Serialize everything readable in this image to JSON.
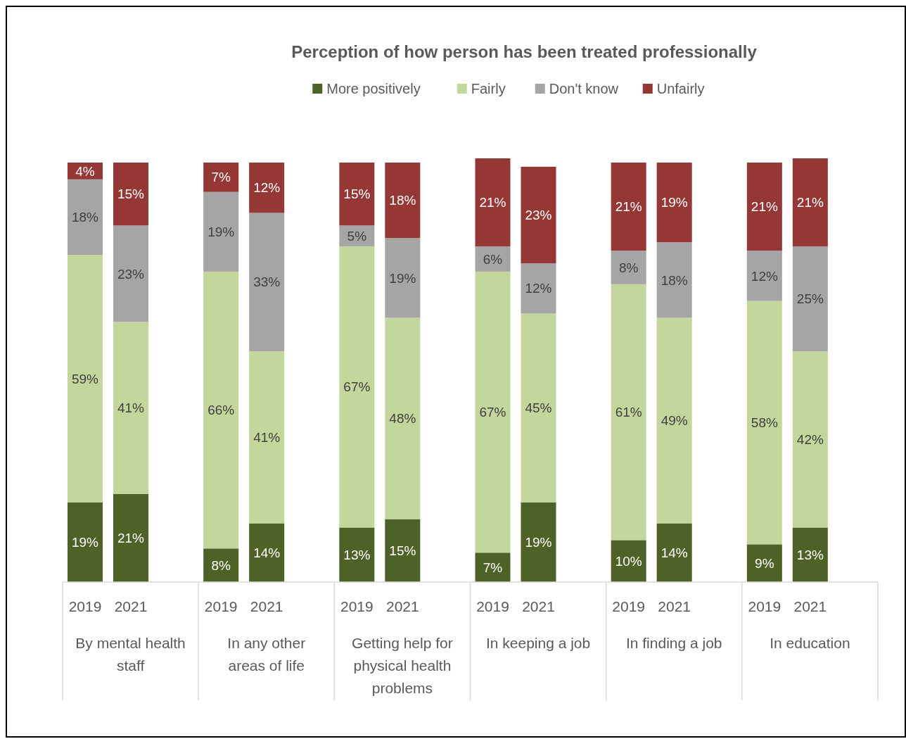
{
  "chart_data": {
    "type": "bar",
    "stacked": true,
    "title": "Perception of how person has been treated professionally",
    "legend": "top",
    "categories": [
      "2019",
      "2021",
      "2019",
      "2021",
      "2019",
      "2021",
      "2019",
      "2021",
      "2019",
      "2021",
      "2019",
      "2021"
    ],
    "annotations": [
      "By mental health staff",
      "In any other areas of life",
      "Getting help for physical health problems",
      "In keeping a job",
      "In finding a job",
      "In education"
    ],
    "series": [
      {
        "name": "More positively",
        "color": "#4e6228",
        "values": [
          19,
          21,
          8,
          14,
          13,
          15,
          7,
          19,
          10,
          14,
          9,
          13
        ],
        "value_labels": [
          "19%",
          "21%",
          "8%",
          "14%",
          "13%",
          "15%",
          "7%",
          "19%",
          "10%",
          "14%",
          "9%",
          "13%"
        ]
      },
      {
        "name": "Fairly",
        "color": "#c3d69b",
        "values": [
          59,
          41,
          66,
          41,
          67,
          48,
          67,
          45,
          61,
          49,
          58,
          42
        ],
        "value_labels": [
          "59%",
          "41%",
          "66%",
          "41%",
          "67%",
          "48%",
          "67%",
          "45%",
          "61%",
          "49%",
          "58%",
          "42%"
        ]
      },
      {
        "name": "Don't know",
        "color": "#a5a5a5",
        "values": [
          18,
          23,
          19,
          33,
          5,
          19,
          6,
          12,
          8,
          18,
          12,
          25
        ],
        "value_labels": [
          "18%",
          "23%",
          "19%",
          "33%",
          "5%",
          "19%",
          "6%",
          "12%",
          "8%",
          "18%",
          "12%",
          "25%"
        ]
      },
      {
        "name": "Unfairly",
        "color": "#953735",
        "values": [
          4,
          15,
          7,
          12,
          15,
          18,
          21,
          23,
          21,
          19,
          21,
          21
        ],
        "value_labels": [
          "4%",
          "15%",
          "7%",
          "12%",
          "15%",
          "18%",
          "21%",
          "23%",
          "21%",
          "19%",
          "21%",
          "21%"
        ]
      }
    ]
  }
}
